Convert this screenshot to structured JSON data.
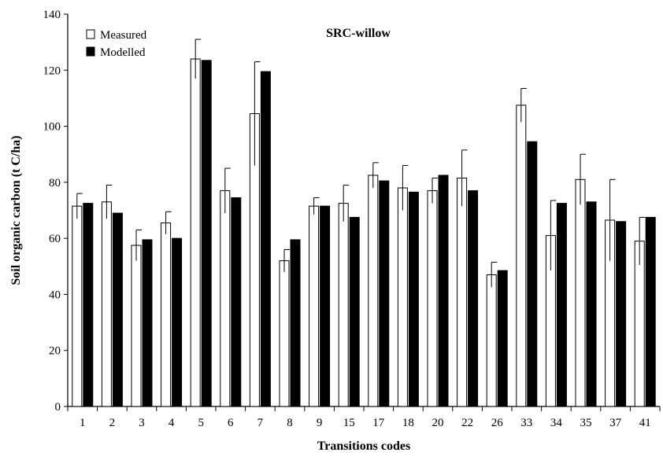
{
  "chart_data": {
    "type": "bar",
    "title": "SRC-willow",
    "xlabel": "Transitions codes",
    "ylabel": "Soil organic carbon (t C/ha)",
    "ylim": [
      0,
      140
    ],
    "yticks": [
      0,
      20,
      40,
      60,
      80,
      100,
      120,
      140
    ],
    "grid": false,
    "legend_position": "top-left",
    "categories": [
      "1",
      "2",
      "3",
      "4",
      "5",
      "6",
      "7",
      "8",
      "9",
      "15",
      "17",
      "18",
      "20",
      "22",
      "26",
      "33",
      "34",
      "35",
      "37",
      "41"
    ],
    "series": [
      {
        "name": "Measured",
        "color": "#ffffff",
        "values": [
          71.5,
          73,
          57.5,
          65.5,
          124,
          77,
          104.5,
          52,
          71.5,
          72.5,
          82.5,
          78,
          77,
          81.5,
          47,
          107.5,
          61,
          81,
          66.5,
          59
        ],
        "error": [
          4.5,
          6,
          5.5,
          4,
          7,
          8,
          18.5,
          4,
          3,
          6.5,
          4.5,
          8,
          4.5,
          10,
          4.5,
          6,
          12.5,
          9,
          14.5,
          8.5
        ]
      },
      {
        "name": "Modelled",
        "color": "#000000",
        "values": [
          72.5,
          69,
          59.5,
          60,
          123.5,
          74.5,
          119.5,
          59.5,
          71.5,
          67.5,
          80.5,
          76.5,
          82.5,
          77,
          48.5,
          94.5,
          72.5,
          73,
          66,
          67.5
        ]
      }
    ]
  }
}
